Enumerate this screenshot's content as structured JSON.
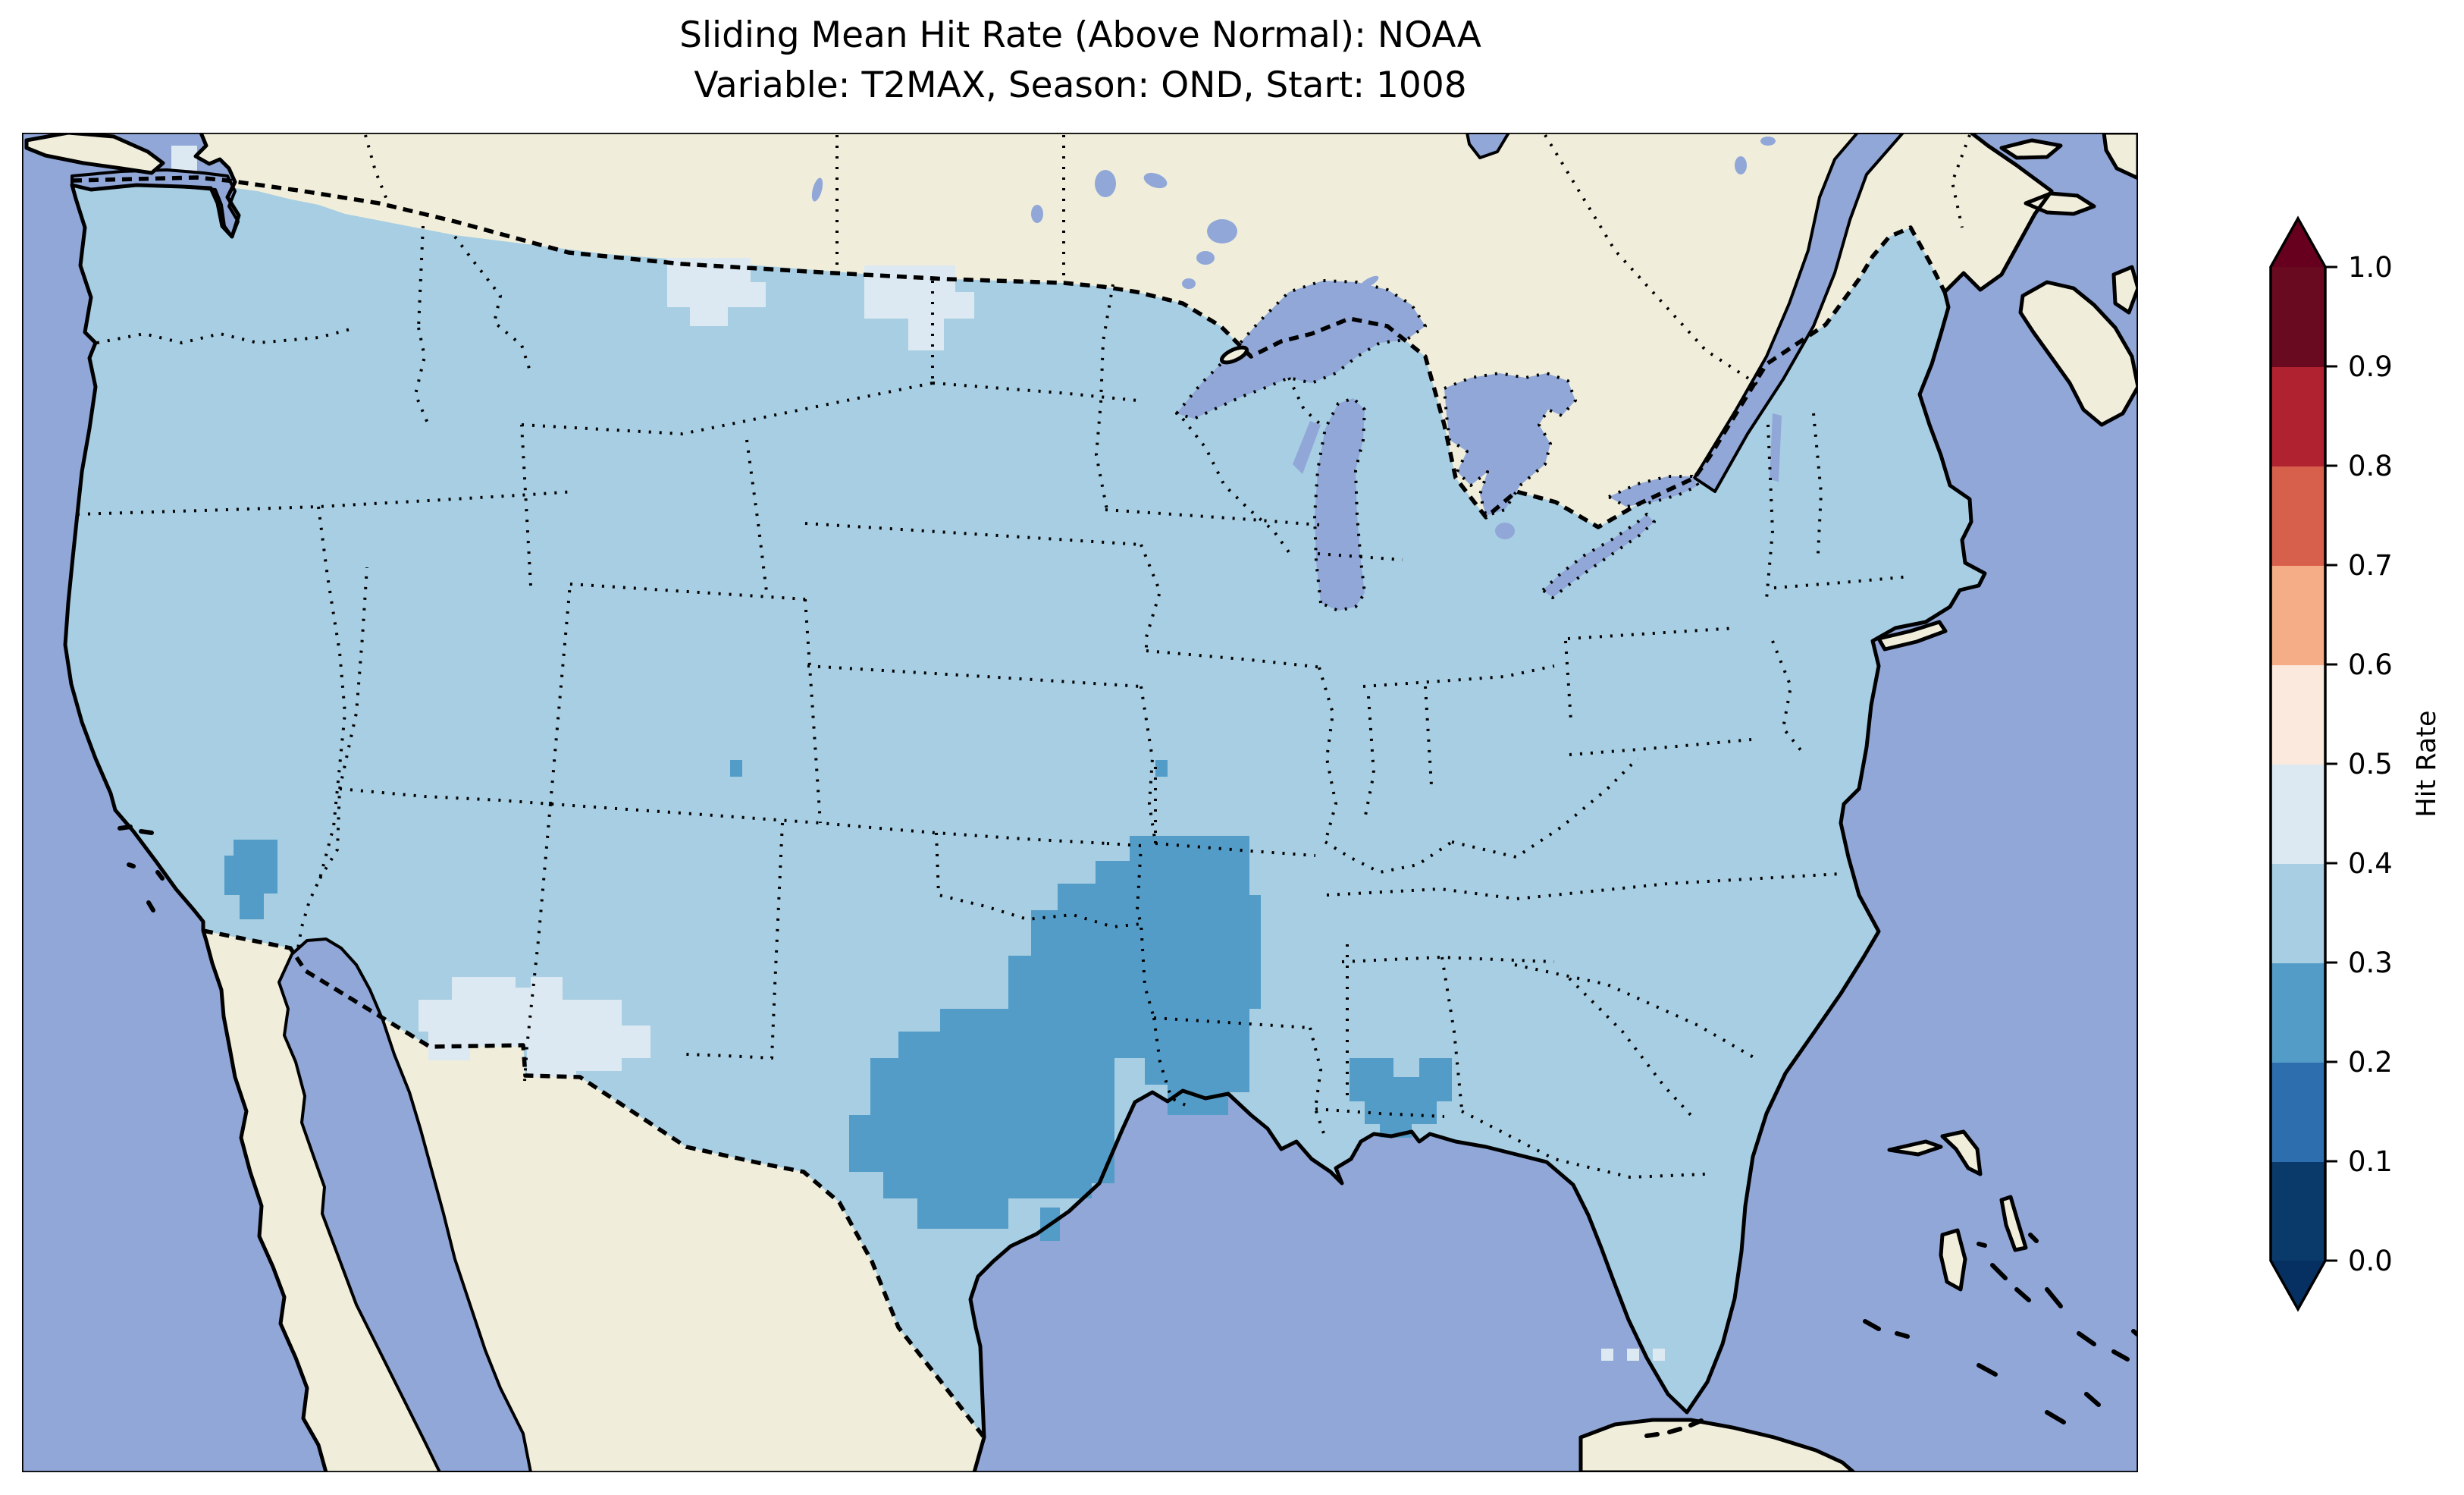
{
  "title": {
    "line1": "Sliding Mean Hit Rate (Above Normal): NOAA",
    "line2": "Variable: T2MAX, Season: OND, Start: 1008"
  },
  "colorbar": {
    "label": "Hit Rate",
    "ticks": [
      "0.0",
      "0.1",
      "0.2",
      "0.3",
      "0.4",
      "0.5",
      "0.6",
      "0.7",
      "0.8",
      "0.9",
      "1.0"
    ],
    "bin_colors": [
      "#0a3a69",
      "#2d6eae",
      "#539cc8",
      "#a7cee2",
      "#dde9f2",
      "#fae9dc",
      "#f4ad86",
      "#d7604c",
      "#b02230",
      "#6a0a20"
    ],
    "under_color": "#053061",
    "over_color": "#67001f"
  },
  "map": {
    "colors": {
      "ocean": "#90a7d8",
      "land": "#f0eedb",
      "coastline": "#000000"
    }
  },
  "chart_data": {
    "type": "choropleth_map",
    "title": "Sliding Mean Hit Rate (Above Normal): NOAA",
    "subtitle": "Variable: T2MAX, Season: OND, Start: 1008",
    "source": "NOAA",
    "variable": "T2MAX",
    "season": "OND",
    "start": "1008",
    "measure": "Hit Rate",
    "region_shown": "Contiguous United States with surrounding Canada, Mexico, Gulf of Mexico, Bahamas and Cuba",
    "colorbar_range": [
      0.0,
      1.0
    ],
    "colorbar_tick_step": 0.1,
    "colorbar_extends_both_ends": true,
    "bin_fill": {
      "0.0-0.1": "#0a3a69",
      "0.1-0.2": "#2d6eae",
      "0.2-0.3": "#539cc8",
      "0.3-0.4": "#a7cee2",
      "0.4-0.5": "#dde9f2",
      "0.5-0.6": "#fae9dc",
      "0.6-0.7": "#f4ad86",
      "0.7-0.8": "#d7604c",
      "0.8-0.9": "#b02230",
      "0.9-1.0": "#6a0a20"
    },
    "observations": [
      {
        "region": "Most of the contiguous US grid",
        "hit_rate": "0.3-0.4"
      },
      {
        "region": "Central Texas - Oklahoma - Arkansas - southern Missouri cluster",
        "hit_rate": "0.2-0.3"
      },
      {
        "region": "Southern California interior patch",
        "hit_rate": "0.2-0.3"
      },
      {
        "region": "Mississippi - Alabama Gulf Coast patch",
        "hit_rate": "0.2-0.3"
      },
      {
        "region": "Upper Texas coast cells",
        "hit_rate": "0.2-0.3"
      },
      {
        "region": "Isolated single cells in western Kansas and Missouri",
        "hit_rate": "0.2-0.3"
      },
      {
        "region": "North-central Montana and western North Dakota patches",
        "hit_rate": "0.4-0.5"
      },
      {
        "region": "Southwest New Mexico - west Texas border strip",
        "hit_rate": "0.4-0.5"
      },
      {
        "region": "Northwest Washington cell",
        "hit_rate": "0.4-0.5"
      },
      {
        "region": "Cells southwest of the southern Florida tip",
        "hit_rate": "0.4-0.5"
      }
    ]
  }
}
